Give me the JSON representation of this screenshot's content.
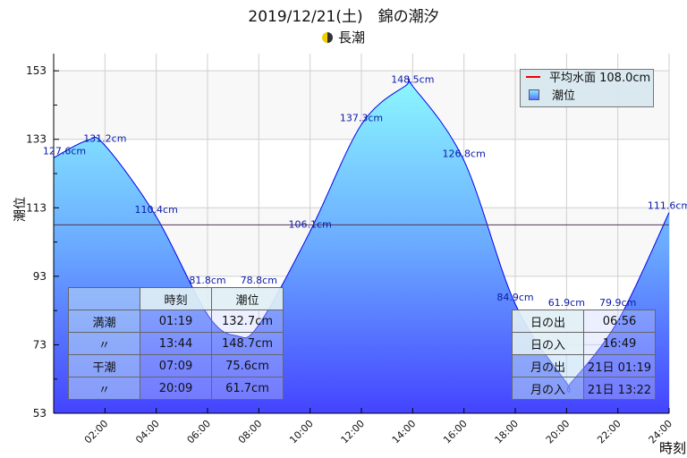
{
  "header": {
    "title": "2019/12/21(土)　錦の潮汐",
    "tide_type": "長潮",
    "moon_icon": "half-moon-icon"
  },
  "legend": {
    "mean_label": "平均水面 108.0cm",
    "tide_label": "潮位",
    "mean_color": "#ee0000"
  },
  "tide_table": {
    "headers": [
      "",
      "時刻",
      "潮位"
    ],
    "rows": [
      [
        "満潮",
        "01:19",
        "132.7cm"
      ],
      [
        "〃",
        "13:44",
        "148.7cm"
      ],
      [
        "干潮",
        "07:09",
        "75.6cm"
      ],
      [
        "〃",
        "20:09",
        "61.7cm"
      ]
    ]
  },
  "sun_moon_table": {
    "rows": [
      [
        "日の出",
        "06:56"
      ],
      [
        "日の入",
        "16:49"
      ],
      [
        "月の出",
        "21日 01:19"
      ],
      [
        "月の入",
        "21日 13:22"
      ]
    ]
  },
  "chart_data": {
    "type": "area",
    "title": "2019/12/21(土)　錦の潮汐",
    "xlabel": "時刻",
    "ylabel": "潮位",
    "xlim": [
      0,
      24
    ],
    "ylim": [
      53,
      158
    ],
    "yticks": [
      53,
      73,
      93,
      113,
      133,
      153
    ],
    "xticks": [
      "02:00",
      "04:00",
      "06:00",
      "08:00",
      "10:00",
      "12:00",
      "14:00",
      "16:00",
      "18:00",
      "20:00",
      "22:00",
      "24:00"
    ],
    "mean_level": 108.0,
    "points": [
      {
        "h": 0,
        "v": 127.6,
        "label": "127.6cm"
      },
      {
        "h": 1.3167,
        "v": 132.7
      },
      {
        "h": 2,
        "v": 131.2,
        "label": "131.2cm"
      },
      {
        "h": 4,
        "v": 110.4,
        "label": "110.4cm"
      },
      {
        "h": 6,
        "v": 81.8,
        "label": "81.8cm"
      },
      {
        "h": 7.15,
        "v": 75.6
      },
      {
        "h": 8,
        "v": 78.8,
        "label": "78.8cm"
      },
      {
        "h": 10,
        "v": 106.1,
        "label": "106.1cm"
      },
      {
        "h": 12,
        "v": 137.3,
        "label": "137.3cm"
      },
      {
        "h": 13.7333,
        "v": 148.7
      },
      {
        "h": 14,
        "v": 148.5,
        "label": "148.5cm"
      },
      {
        "h": 16,
        "v": 126.8,
        "label": "126.8cm"
      },
      {
        "h": 18,
        "v": 84.9,
        "label": "84.9cm"
      },
      {
        "h": 20,
        "v": 61.9,
        "label": "61.9cm"
      },
      {
        "h": 20.15,
        "v": 61.7
      },
      {
        "h": 22,
        "v": 79.9,
        "label": "79.9cm"
      },
      {
        "h": 24,
        "v": 111.6,
        "label": "111.6cm"
      }
    ]
  }
}
